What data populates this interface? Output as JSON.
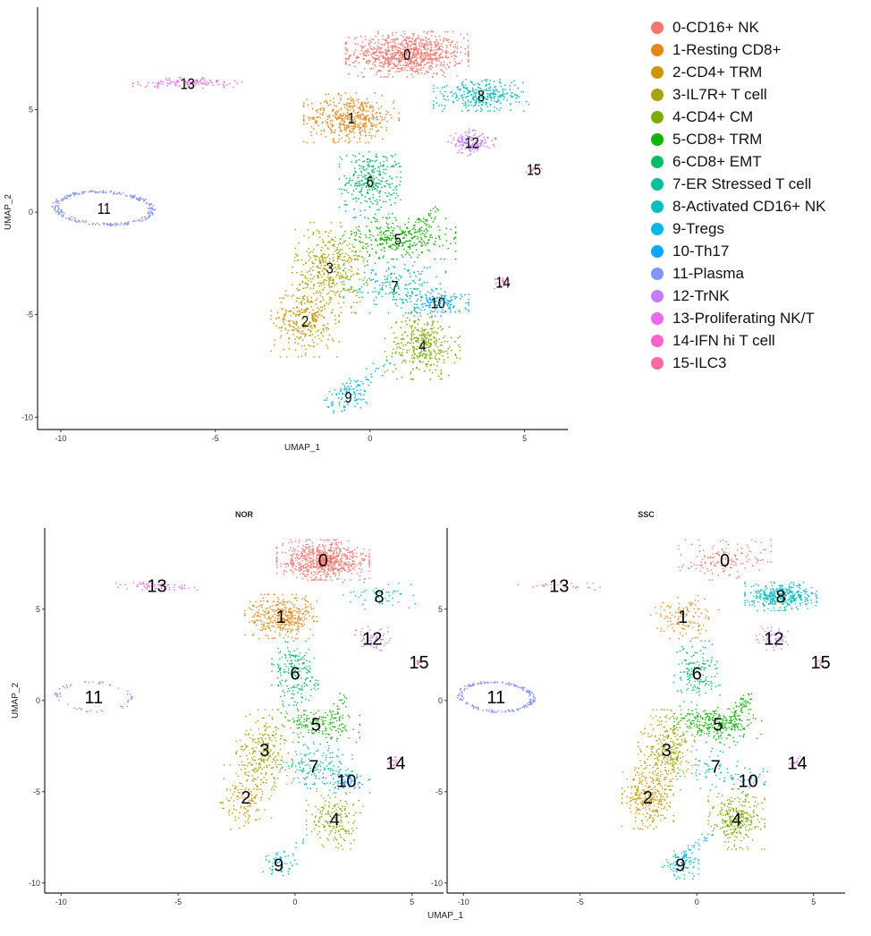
{
  "chart_data": [
    {
      "type": "scatter",
      "panel": "all",
      "title": "",
      "xlabel": "UMAP_1",
      "ylabel": "UMAP_2",
      "xlim": [
        -10.75,
        6.4
      ],
      "ylim": [
        -10.6,
        10.0
      ],
      "xticks": [
        -10,
        -5,
        0,
        5
      ],
      "yticks": [
        -10,
        -5,
        0,
        5
      ],
      "grid": false,
      "legend": "right"
    },
    {
      "type": "scatter",
      "panel": "NOR",
      "title": "NOR",
      "xlabel": "UMAP_1",
      "ylabel": "UMAP_2",
      "xlim": [
        -10.7,
        6.35
      ],
      "ylim": [
        -10.55,
        9.45
      ],
      "xticks": [
        -10,
        -5,
        0,
        5
      ],
      "yticks": [
        -10,
        -5,
        0,
        5
      ],
      "grid": false
    },
    {
      "type": "scatter",
      "panel": "SSC",
      "title": "SSC",
      "xlabel": "UMAP_1",
      "ylabel": "UMAP_2",
      "xlim": [
        -10.7,
        6.35
      ],
      "ylim": [
        -10.55,
        9.45
      ],
      "xticks": [
        -10,
        -5,
        0,
        5
      ],
      "yticks": [
        -10,
        -5,
        0,
        5
      ],
      "grid": false
    }
  ],
  "clusters": [
    {
      "id": "0",
      "label": "0-CD16+ NK",
      "color": "#F8766D",
      "center": [
        1.2,
        7.7
      ],
      "sd": [
        0.9,
        0.5
      ]
    },
    {
      "id": "1",
      "label": "1-Resting CD8+",
      "color": "#E68613",
      "center": [
        -0.6,
        4.6
      ],
      "sd": [
        0.7,
        0.55
      ]
    },
    {
      "id": "2",
      "label": "2-CD4+ TRM",
      "color": "#CD9600",
      "center": [
        -2.1,
        -5.3
      ],
      "sd": [
        0.5,
        0.8
      ]
    },
    {
      "id": "3",
      "label": "3-IL7R+ T cell",
      "color": "#ABA300",
      "center": [
        -1.3,
        -2.7
      ],
      "sd": [
        0.55,
        1.0
      ]
    },
    {
      "id": "4",
      "label": "4-CD4+ CM",
      "color": "#7CAE00",
      "center": [
        1.7,
        -6.5
      ],
      "sd": [
        0.55,
        0.75
      ]
    },
    {
      "id": "5",
      "label": "5-CD8+ TRM",
      "color": "#0CB702",
      "center": [
        0.9,
        -1.3
      ],
      "sd": [
        0.85,
        0.45
      ]
    },
    {
      "id": "6",
      "label": "6-CD8+ EMT",
      "color": "#00BE67",
      "center": [
        0.0,
        1.5
      ],
      "sd": [
        0.45,
        0.8
      ]
    },
    {
      "id": "7",
      "label": "7-ER Stressed T cell",
      "color": "#00C19A",
      "center": [
        0.8,
        -3.6
      ],
      "sd": [
        0.75,
        0.6
      ]
    },
    {
      "id": "8",
      "label": "8-Activated CD16+ NK",
      "color": "#00BFC4",
      "center": [
        3.6,
        5.7
      ],
      "sd": [
        0.7,
        0.35
      ]
    },
    {
      "id": "9",
      "label": "9-Tregs",
      "color": "#00B8E7",
      "center": [
        -0.7,
        -9.0
      ],
      "sd": [
        0.35,
        0.35
      ]
    },
    {
      "id": "10",
      "label": "10-Th17",
      "color": "#00A9FF",
      "center": [
        2.2,
        -4.4
      ],
      "sd": [
        0.45,
        0.3
      ]
    },
    {
      "id": "11",
      "label": "11-Plasma",
      "color": "#8494FF",
      "center": [
        -8.6,
        0.2
      ],
      "sd": [
        1.6,
        0.9
      ]
    },
    {
      "id": "12",
      "label": "12-TrNK",
      "color": "#C77CFF",
      "center": [
        3.3,
        3.4
      ],
      "sd": [
        0.35,
        0.3
      ]
    },
    {
      "id": "13",
      "label": "13-Proliferating NK/T",
      "color": "#ED68ED",
      "center": [
        -5.9,
        6.3
      ],
      "sd": [
        0.8,
        0.12
      ]
    },
    {
      "id": "14",
      "label": "14-IFN hi T cell",
      "color": "#FF61CC",
      "center": [
        4.3,
        -3.4
      ],
      "sd": [
        0.15,
        0.15
      ]
    },
    {
      "id": "15",
      "label": "15-ILC3",
      "color": "#FF68A1",
      "center": [
        5.3,
        2.1
      ],
      "sd": [
        0.12,
        0.1
      ]
    }
  ]
}
